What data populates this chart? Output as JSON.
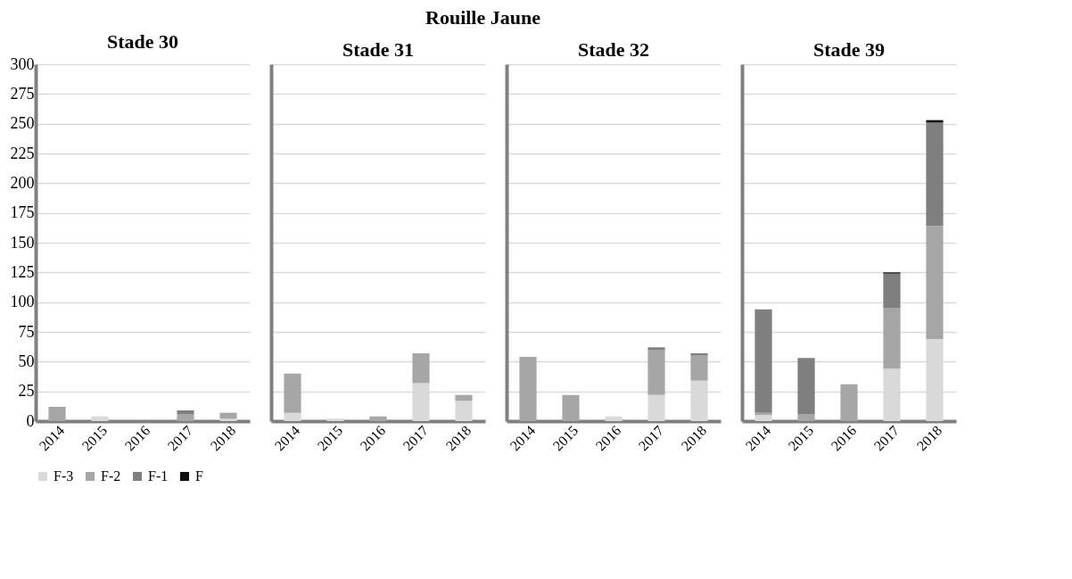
{
  "chart_data": [
    {
      "type": "bar",
      "title": "Stade 30",
      "annotations": [
        "Rouille Jaune"
      ],
      "categories": [
        "2014",
        "2015",
        "2016",
        "2017",
        "2018"
      ],
      "stacked": true,
      "ylim": [
        0,
        300
      ],
      "yticks": [
        0,
        25,
        50,
        75,
        100,
        125,
        150,
        175,
        200,
        225,
        250,
        275,
        300
      ],
      "grid": "y",
      "legend": "bottom",
      "series": [
        {
          "name": "F-3",
          "color": "#d9d9d9",
          "values": [
            0,
            4,
            0,
            null,
            2
          ]
        },
        {
          "name": "F-2",
          "color": "#a6a6a6",
          "values": [
            12,
            0,
            0,
            6,
            5
          ]
        },
        {
          "name": "F-1",
          "color": "#7f7f7f",
          "values": [
            0,
            0,
            0,
            3,
            0
          ]
        },
        {
          "name": "F",
          "color": "#0d0d0d",
          "values": [
            0,
            0,
            0,
            0,
            0
          ]
        }
      ]
    },
    {
      "type": "bar",
      "title": "Stade 31",
      "categories": [
        "2014",
        "2015",
        "2016",
        "2017",
        "2018"
      ],
      "stacked": true,
      "ylim": [
        0,
        300
      ],
      "yticks": [
        0,
        25,
        50,
        75,
        100,
        125,
        150,
        175,
        200,
        225,
        250,
        275,
        300
      ],
      "grid": "y",
      "tick_labels": "x",
      "series": [
        {
          "color": "#d9d9d9",
          "values": [
            7,
            2,
            0,
            32,
            17
          ]
        },
        {
          "color": "#a6a6a6",
          "values": [
            33,
            0,
            4,
            25,
            5
          ]
        },
        {
          "color": "#7f7f7f",
          "values": [
            0,
            0,
            0,
            0,
            0
          ]
        },
        {
          "color": "#0d0d0d",
          "values": [
            0,
            0,
            0,
            0,
            0
          ]
        }
      ]
    },
    {
      "type": "bar",
      "title": "Stade 32",
      "categories": [
        "2014",
        "2015",
        "2016",
        "2017",
        "2018"
      ],
      "stacked": true,
      "ylim": [
        0,
        300
      ],
      "yticks": [
        0,
        25,
        50,
        75,
        100,
        125,
        150,
        175,
        200,
        225,
        250,
        275,
        300
      ],
      "grid": "y",
      "tick_labels": "x",
      "series": [
        {
          "color": "#d9d9d9",
          "values": [
            0,
            0,
            4,
            22,
            34
          ]
        },
        {
          "color": "#a6a6a6",
          "values": [
            54,
            22,
            0,
            38,
            21
          ]
        },
        {
          "color": "#7f7f7f",
          "values": [
            0,
            0,
            0,
            2,
            2
          ]
        },
        {
          "color": "#0d0d0d",
          "values": [
            0,
            0,
            0,
            0,
            0
          ]
        }
      ]
    },
    {
      "type": "bar",
      "title": "Stade 39",
      "categories": [
        "2014",
        "2015",
        "2016",
        "2017",
        "2018"
      ],
      "stacked": true,
      "ylim": [
        0,
        300
      ],
      "yticks": [
        0,
        25,
        50,
        75,
        100,
        125,
        150,
        175,
        200,
        225,
        250,
        275,
        300
      ],
      "grid": "y",
      "tick_labels": "x",
      "series": [
        {
          "color": "#d9d9d9",
          "values": [
            5,
            null,
            null,
            44,
            69
          ]
        },
        {
          "color": "#a6a6a6",
          "values": [
            2,
            6,
            31,
            51,
            95
          ]
        },
        {
          "color": "#7f7f7f",
          "values": [
            87,
            47,
            0,
            29,
            87
          ]
        },
        {
          "color": "#0d0d0d",
          "values": [
            0,
            0,
            0,
            1,
            2
          ]
        }
      ]
    }
  ]
}
